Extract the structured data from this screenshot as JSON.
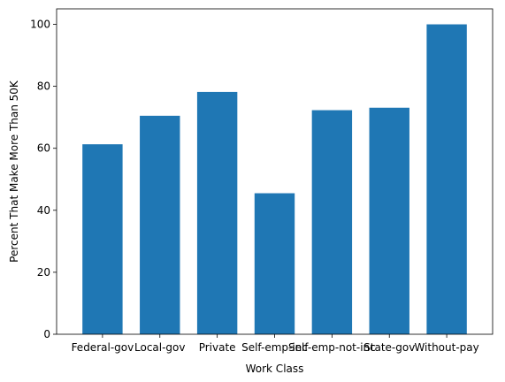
{
  "chart_data": {
    "type": "bar",
    "title": "",
    "xlabel": "Work Class",
    "ylabel": "Percent That Make More Than 50K",
    "categories": [
      "Federal-gov",
      "Local-gov",
      "Private",
      "Self-emp-inc",
      "Self-emp-not-inc",
      "State-gov",
      "Without-pay"
    ],
    "values": [
      61.3,
      70.5,
      78.2,
      45.5,
      72.3,
      73.1,
      100.0
    ],
    "ylim": [
      0,
      105
    ],
    "yticks": [
      0,
      20,
      40,
      60,
      80,
      100
    ],
    "grid": false,
    "legend": "none",
    "colors": {
      "bar": "#1f77b4",
      "axis": "#000000",
      "background": "#ffffff"
    }
  }
}
